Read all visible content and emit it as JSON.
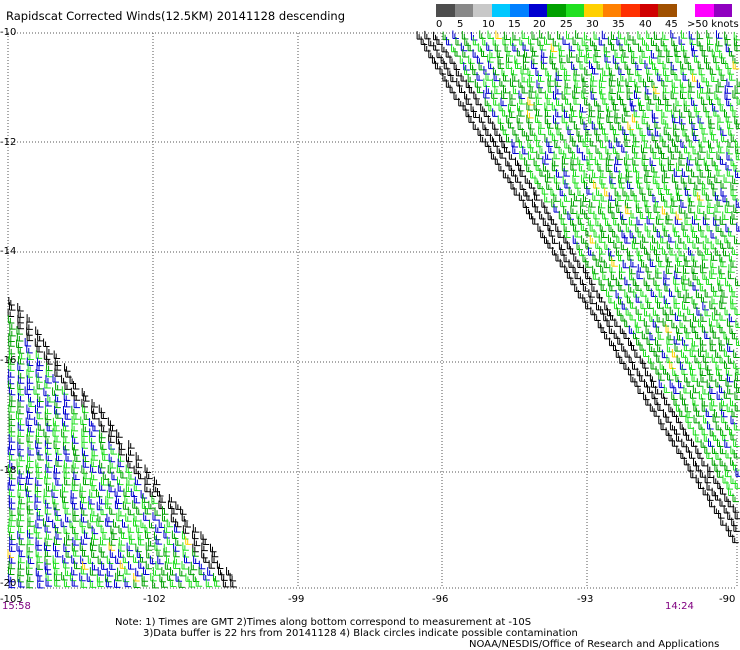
{
  "title": "Rapidscat Corrected Winds(12.5KM) 20141128 descending",
  "legend": {
    "colors": [
      "#4d4d4d",
      "#888888",
      "#c8c8c8",
      "#00c8ff",
      "#0080ff",
      "#0000d0",
      "#00a000",
      "#20e020",
      "#ffd000",
      "#ff8000",
      "#ff3000",
      "#d00000",
      "#a05000",
      "#ffffff",
      "#ff00ff",
      "#9000c0"
    ],
    "labels": [
      "0",
      "5",
      "10",
      "15",
      "20",
      "25",
      "30",
      "35",
      "40",
      "45",
      ">50 knots"
    ],
    "wind_colors": {
      "calm": "#000000",
      "light": "#0000d0",
      "moderate": "#00a000",
      "fresh": "#20e020",
      "strong": "#ffd000"
    }
  },
  "axes": {
    "lat_ticks": [
      "-10",
      "-12",
      "-14",
      "-16",
      "-18",
      "-20"
    ],
    "lon_ticks": [
      "-105",
      "-102",
      "-99",
      "-96",
      "-93",
      "-90"
    ],
    "grid": "dotted"
  },
  "times": {
    "left": "15:58",
    "right": "14:24",
    "color": "#800080"
  },
  "notes": {
    "line1": "Note: 1) Times are GMT 2)Times along bottom correspond to measurement at -10S",
    "line2": "3)Data buffer is 22 hrs from 20141128 4) Black circles indicate possible contamination",
    "credit": "NOAA/NESDIS/Office of Research and Applications"
  }
}
